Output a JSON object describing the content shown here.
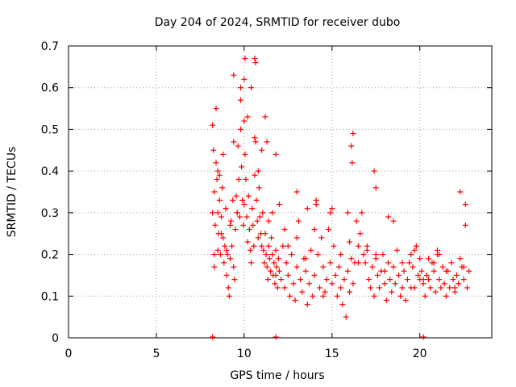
{
  "chart_data": {
    "type": "scatter",
    "title": "Day 204 of 2024, SRMTID for receiver dubo",
    "xlabel": "GPS time / hours",
    "ylabel": "SRMTID / TECUs",
    "xlim": [
      0,
      24.1
    ],
    "ylim": [
      0,
      0.7
    ],
    "x_ticks": [
      0,
      5,
      10,
      15,
      20
    ],
    "y_ticks": [
      0,
      0.1,
      0.2,
      0.3,
      0.4,
      0.5,
      0.6,
      0.7
    ],
    "x_tick_labels": [
      "0",
      "5",
      "10",
      "15",
      "20"
    ],
    "y_tick_labels": [
      "0",
      "0.1",
      "0.2",
      "0.3",
      "0.4",
      "0.5",
      "0.6",
      "0.7"
    ],
    "grid": true,
    "marker": "+",
    "color": "#ff0000",
    "series": [
      {
        "name": "SRMTID",
        "x": [
          8.2,
          8.25,
          8.3,
          8.35,
          8.4,
          8.45,
          8.5,
          8.55,
          8.6,
          8.65,
          8.7,
          8.75,
          8.8,
          8.85,
          8.9,
          8.95,
          9.0,
          9.05,
          9.1,
          9.15,
          9.2,
          9.25,
          9.3,
          9.35,
          9.4,
          9.45,
          9.5,
          9.55,
          9.6,
          9.65,
          9.7,
          9.75,
          9.8,
          9.85,
          9.9,
          9.95,
          10.0,
          10.05,
          10.1,
          10.15,
          10.2,
          10.25,
          10.3,
          10.35,
          10.4,
          10.45,
          10.5,
          10.55,
          10.6,
          10.65,
          10.7,
          10.75,
          10.8,
          10.85,
          10.9,
          10.95,
          11.0,
          11.05,
          11.1,
          11.15,
          11.2,
          11.25,
          11.3,
          11.35,
          11.4,
          11.45,
          11.5,
          11.55,
          11.6,
          11.65,
          11.7,
          11.75,
          11.8,
          11.85,
          11.9,
          11.95,
          12.0,
          12.1,
          12.2,
          12.3,
          12.4,
          12.5,
          12.6,
          12.7,
          12.8,
          12.9,
          13.0,
          13.1,
          13.2,
          13.3,
          13.4,
          13.5,
          13.6,
          13.7,
          13.8,
          13.9,
          14.0,
          14.1,
          14.2,
          14.3,
          14.4,
          14.5,
          14.6,
          14.7,
          14.8,
          14.9,
          15.0,
          15.1,
          15.2,
          15.3,
          15.4,
          15.5,
          15.6,
          15.7,
          15.8,
          15.9,
          16.0,
          16.1,
          16.2,
          16.3,
          16.4,
          16.5,
          16.6,
          16.7,
          16.8,
          16.9,
          17.0,
          17.1,
          17.2,
          17.3,
          17.4,
          17.5,
          17.6,
          17.7,
          17.8,
          17.9,
          18.0,
          18.1,
          18.2,
          18.3,
          18.4,
          18.5,
          18.6,
          18.7,
          18.8,
          18.9,
          19.0,
          19.1,
          19.2,
          19.3,
          19.4,
          19.5,
          19.6,
          19.7,
          19.8,
          19.9,
          20.0,
          20.1,
          20.2,
          20.3,
          20.4,
          20.5,
          20.6,
          20.7,
          20.8,
          20.9,
          21.0,
          21.1,
          21.2,
          21.3,
          21.4,
          21.5,
          21.6,
          21.7,
          21.8,
          21.9,
          22.0,
          22.1,
          22.2,
          22.3,
          22.4,
          22.5,
          22.6,
          22.7,
          22.8,
          8.2,
          8.3,
          8.4,
          8.5,
          8.6,
          8.7,
          8.8,
          9.0,
          9.2,
          9.4,
          9.6,
          9.8,
          10.0,
          10.2,
          10.4,
          10.6,
          10.8,
          11.0,
          11.2,
          11.4,
          11.6,
          11.8,
          12.0,
          12.5,
          13.0,
          13.5,
          14.0,
          14.5,
          15.0,
          15.5,
          16.0,
          16.5,
          17.0,
          17.5,
          18.0,
          18.5,
          19.0,
          19.5,
          20.0,
          20.5,
          21.0,
          21.5,
          22.0,
          22.5,
          9.4,
          10.0,
          10.05,
          10.6,
          10.65,
          16.1,
          16.15,
          16.2,
          17.4,
          17.5,
          22.3,
          22.6,
          13.0,
          14.1,
          9.8,
          11.3,
          15.9,
          18.2,
          21.1,
          13.6,
          19.7,
          12.3,
          14.9,
          20.8,
          8.3,
          8.5,
          11.8,
          20.2
        ],
        "y": [
          0.51,
          0.45,
          0.35,
          0.27,
          0.42,
          0.38,
          0.3,
          0.25,
          0.33,
          0.2,
          0.29,
          0.36,
          0.24,
          0.18,
          0.22,
          0.31,
          0.15,
          0.2,
          0.12,
          0.1,
          0.19,
          0.28,
          0.22,
          0.33,
          0.17,
          0.14,
          0.26,
          0.34,
          0.3,
          0.46,
          0.38,
          0.29,
          0.5,
          0.41,
          0.33,
          0.27,
          0.32,
          0.44,
          0.38,
          0.29,
          0.23,
          0.34,
          0.26,
          0.21,
          0.18,
          0.31,
          0.27,
          0.22,
          0.39,
          0.47,
          0.33,
          0.28,
          0.24,
          0.36,
          0.29,
          0.25,
          0.22,
          0.3,
          0.21,
          0.18,
          0.25,
          0.2,
          0.17,
          0.14,
          0.22,
          0.19,
          0.16,
          0.24,
          0.2,
          0.15,
          0.18,
          0.13,
          0.21,
          0.17,
          0.12,
          0.19,
          0.16,
          0.14,
          0.22,
          0.12,
          0.18,
          0.15,
          0.1,
          0.2,
          0.13,
          0.09,
          0.17,
          0.28,
          0.14,
          0.11,
          0.19,
          0.16,
          0.08,
          0.13,
          0.21,
          0.1,
          0.15,
          0.32,
          0.2,
          0.12,
          0.24,
          0.17,
          0.11,
          0.14,
          0.26,
          0.18,
          0.13,
          0.22,
          0.15,
          0.1,
          0.17,
          0.12,
          0.08,
          0.14,
          0.05,
          0.16,
          0.11,
          0.19,
          0.13,
          0.18,
          0.28,
          0.22,
          0.25,
          0.3,
          0.2,
          0.18,
          0.22,
          0.14,
          0.12,
          0.17,
          0.1,
          0.19,
          0.15,
          0.12,
          0.16,
          0.2,
          0.13,
          0.09,
          0.18,
          0.14,
          0.11,
          0.17,
          0.13,
          0.21,
          0.15,
          0.1,
          0.12,
          0.16,
          0.09,
          0.14,
          0.18,
          0.2,
          0.17,
          0.12,
          0.22,
          0.15,
          0.19,
          0.16,
          0.13,
          0.1,
          0.15,
          0.14,
          0.12,
          0.18,
          0.16,
          0.11,
          0.2,
          0.14,
          0.12,
          0.17,
          0.13,
          0.1,
          0.16,
          0.12,
          0.18,
          0.14,
          0.11,
          0.15,
          0.13,
          0.19,
          0.17,
          0.14,
          0.27,
          0.12,
          0.16,
          0.3,
          0.2,
          0.55,
          0.4,
          0.39,
          0.25,
          0.44,
          0.21,
          0.27,
          0.47,
          0.3,
          0.6,
          0.52,
          0.53,
          0.6,
          0.48,
          0.4,
          0.45,
          0.53,
          0.28,
          0.3,
          0.44,
          0.32,
          0.22,
          0.24,
          0.19,
          0.26,
          0.1,
          0.31,
          0.2,
          0.23,
          0.18,
          0.21,
          0.2,
          0.16,
          0.28,
          0.18,
          0.12,
          0.14,
          0.19,
          0.21,
          0.16,
          0.12,
          0.17,
          0.63,
          0.62,
          0.67,
          0.67,
          0.66,
          0.46,
          0.42,
          0.49,
          0.4,
          0.36,
          0.35,
          0.32,
          0.35,
          0.33,
          0.57,
          0.47,
          0.3,
          0.29,
          0.2,
          0.31,
          0.21,
          0.26,
          0.3,
          0.18,
          0.17,
          0.21,
          0.15,
          0.14
        ],
        "extra_near_zero_x": [
          8.2,
          11.8,
          20.2
        ]
      }
    ]
  }
}
